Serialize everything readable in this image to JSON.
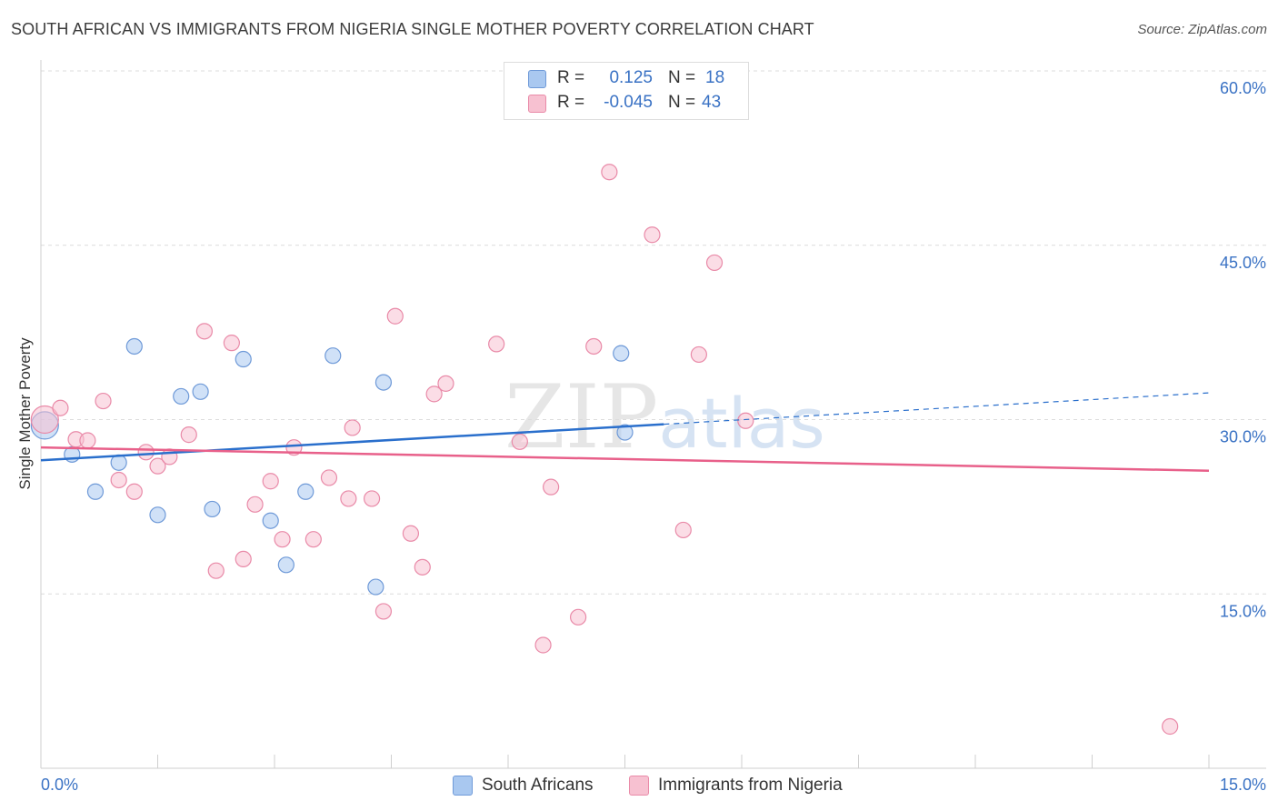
{
  "chart_data": {
    "type": "scatter",
    "title": "SOUTH AFRICAN VS IMMIGRANTS FROM NIGERIA SINGLE MOTHER POVERTY CORRELATION CHART",
    "source": "Source: ZipAtlas.com",
    "xlabel": "",
    "ylabel": "Single Mother Poverty",
    "xlim": [
      0,
      15
    ],
    "ylim": [
      0,
      60
    ],
    "x_tick_labels": [
      "0.0%",
      "15.0%"
    ],
    "y_tick_values": [
      15,
      30,
      45,
      60
    ],
    "y_tick_labels": [
      "15.0%",
      "30.0%",
      "45.0%",
      "60.0%"
    ],
    "grid": true,
    "legend_position": "bottom",
    "watermark": "ZIPatlas",
    "stats": [
      {
        "r_label": "R =",
        "r_value": "0.125",
        "n_label": "N =",
        "n_value": "18"
      },
      {
        "r_label": "R =",
        "r_value": "-0.045",
        "n_label": "N =",
        "n_value": "43"
      }
    ],
    "series": [
      {
        "name": "South Africans",
        "color": "#a9c8f0",
        "stroke": "#6f9ad8",
        "line_color": "#2a6fcc",
        "trend": {
          "x_solid": [
            0,
            8.0
          ],
          "y_solid": [
            26.5,
            29.6
          ],
          "x_dashed": [
            8.0,
            15
          ],
          "y_dashed": [
            29.6,
            32.3
          ]
        },
        "points": [
          {
            "x": 0.05,
            "y": 29.5,
            "big": true
          },
          {
            "x": 0.4,
            "y": 27.0
          },
          {
            "x": 0.7,
            "y": 23.8
          },
          {
            "x": 1.0,
            "y": 26.3
          },
          {
            "x": 1.2,
            "y": 36.3
          },
          {
            "x": 1.5,
            "y": 21.8
          },
          {
            "x": 1.8,
            "y": 32.0
          },
          {
            "x": 2.05,
            "y": 32.4
          },
          {
            "x": 2.2,
            "y": 22.3
          },
          {
            "x": 2.6,
            "y": 35.2
          },
          {
            "x": 2.95,
            "y": 21.3
          },
          {
            "x": 3.15,
            "y": 17.5
          },
          {
            "x": 3.4,
            "y": 23.8
          },
          {
            "x": 3.75,
            "y": 35.5
          },
          {
            "x": 4.3,
            "y": 15.6
          },
          {
            "x": 4.4,
            "y": 33.2
          },
          {
            "x": 7.45,
            "y": 35.7
          },
          {
            "x": 7.5,
            "y": 28.9
          }
        ]
      },
      {
        "name": "Immigrants from Nigeria",
        "color": "#f7c1d1",
        "stroke": "#e98aa8",
        "line_color": "#e8608a",
        "trend": {
          "x_solid": [
            0,
            15
          ],
          "y_solid": [
            27.6,
            25.6
          ]
        },
        "points": [
          {
            "x": 0.05,
            "y": 30.0,
            "big": true
          },
          {
            "x": 0.25,
            "y": 31.0
          },
          {
            "x": 0.45,
            "y": 28.3
          },
          {
            "x": 0.6,
            "y": 28.2
          },
          {
            "x": 0.8,
            "y": 31.6
          },
          {
            "x": 1.0,
            "y": 24.8
          },
          {
            "x": 1.2,
            "y": 23.8
          },
          {
            "x": 1.35,
            "y": 27.2
          },
          {
            "x": 1.5,
            "y": 26.0
          },
          {
            "x": 1.65,
            "y": 26.8
          },
          {
            "x": 1.9,
            "y": 28.7
          },
          {
            "x": 2.1,
            "y": 37.6
          },
          {
            "x": 2.25,
            "y": 17.0
          },
          {
            "x": 2.45,
            "y": 36.6
          },
          {
            "x": 2.6,
            "y": 18.0
          },
          {
            "x": 2.75,
            "y": 22.7
          },
          {
            "x": 2.95,
            "y": 24.7
          },
          {
            "x": 3.1,
            "y": 19.7
          },
          {
            "x": 3.25,
            "y": 27.6
          },
          {
            "x": 3.5,
            "y": 19.7
          },
          {
            "x": 3.7,
            "y": 25.0
          },
          {
            "x": 3.95,
            "y": 23.2
          },
          {
            "x": 4.0,
            "y": 29.3
          },
          {
            "x": 4.25,
            "y": 23.2
          },
          {
            "x": 4.4,
            "y": 13.5
          },
          {
            "x": 4.55,
            "y": 38.9
          },
          {
            "x": 4.75,
            "y": 20.2
          },
          {
            "x": 4.9,
            "y": 17.3
          },
          {
            "x": 5.05,
            "y": 32.2
          },
          {
            "x": 5.2,
            "y": 33.1
          },
          {
            "x": 5.85,
            "y": 36.5
          },
          {
            "x": 6.15,
            "y": 28.1
          },
          {
            "x": 6.45,
            "y": 10.6
          },
          {
            "x": 6.55,
            "y": 24.2
          },
          {
            "x": 6.9,
            "y": 13.0
          },
          {
            "x": 7.1,
            "y": 36.3
          },
          {
            "x": 7.3,
            "y": 51.3
          },
          {
            "x": 7.85,
            "y": 45.9
          },
          {
            "x": 8.25,
            "y": 20.5
          },
          {
            "x": 8.45,
            "y": 35.6
          },
          {
            "x": 8.65,
            "y": 43.5
          },
          {
            "x": 9.05,
            "y": 29.9
          },
          {
            "x": 14.5,
            "y": 3.6
          }
        ]
      }
    ]
  }
}
